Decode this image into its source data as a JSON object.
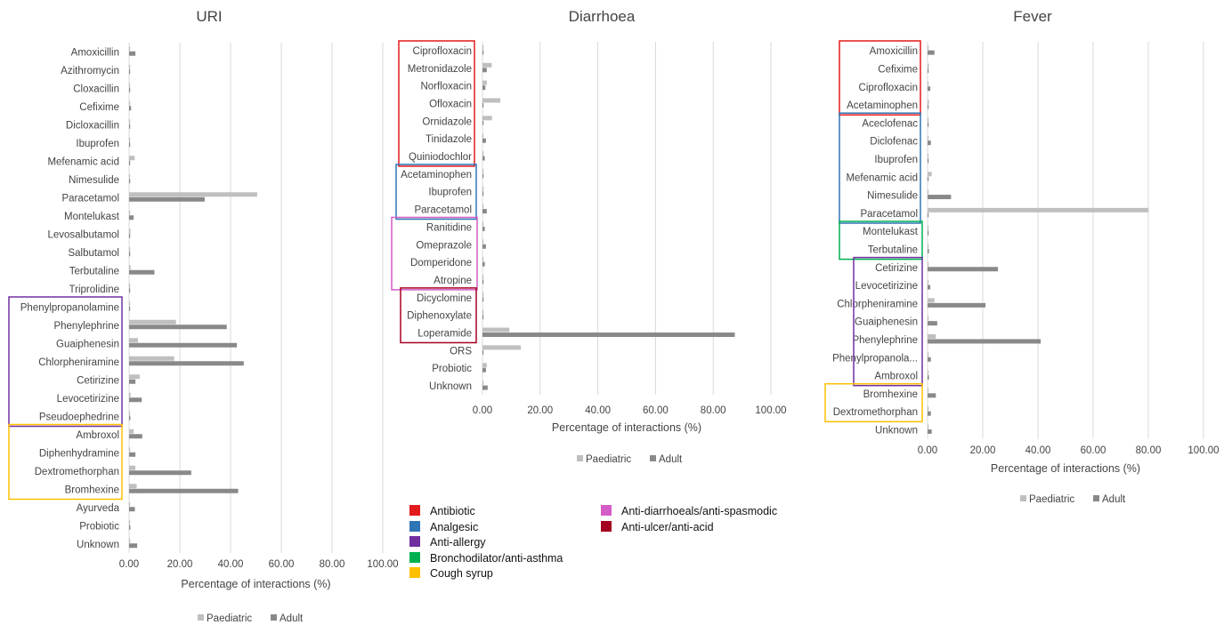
{
  "chart_data": [
    {
      "type": "bar",
      "orientation": "horizontal",
      "title": "URI",
      "xlabel": "Percentage of interactions (%)",
      "xlim": [
        0,
        100
      ],
      "xticks": [
        "0.00",
        "20.00",
        "40.00",
        "60.00",
        "80.00",
        "100.00"
      ],
      "grid": true,
      "legend_position": "bottom",
      "categories": [
        "Amoxicillin",
        "Azithromycin",
        "Cloxacillin",
        "Cefixime",
        "Dicloxacillin",
        "Ibuprofen",
        "Mefenamic acid",
        "Nimesulide",
        "Paracetamol",
        "Montelukast",
        "Levosalbutamol",
        "Salbutamol",
        "Terbutaline",
        "Triprolidine",
        "Phenylpropanolamine",
        "Phenylephrine",
        "Guaiphenesin",
        "Chlorpheniramine",
        "Cetirizine",
        "Levocetirizine",
        "Pseudoephedrine",
        "Ambroxol",
        "Diphenhydramine",
        "Dextromethorphan",
        "Bromhexine",
        "Ayurveda",
        "Probiotic",
        "Unknown"
      ],
      "series": [
        {
          "name": "Paediatric",
          "color": "#bfbfbf",
          "values": [
            0.2,
            0.2,
            0.2,
            0.2,
            0.2,
            0.3,
            2.2,
            0.2,
            50.5,
            0.2,
            0.6,
            0.2,
            0.6,
            0.2,
            0.2,
            18.5,
            3.5,
            17.8,
            4.2,
            0.6,
            0.2,
            1.8,
            0.2,
            2.5,
            3.0,
            0.2,
            0.2,
            0.2
          ]
        },
        {
          "name": "Adult",
          "color": "#898989",
          "values": [
            2.5,
            0.2,
            0.2,
            0.8,
            0.2,
            0.2,
            0.2,
            0.2,
            29.8,
            1.8,
            0.2,
            0.2,
            10.0,
            0.2,
            0.2,
            38.5,
            42.5,
            45.2,
            2.5,
            5.0,
            0.5,
            5.2,
            2.5,
            24.5,
            43.0,
            2.3,
            0.5,
            3.2
          ]
        }
      ],
      "groups": [
        {
          "class": "Anti-allergy",
          "from": "Phenylpropanolamine",
          "to": "Pseudoephedrine",
          "color": "#7030a0"
        },
        {
          "class": "Cough syrup",
          "from": "Ambroxol",
          "to": "Bromhexine",
          "color": "#ffc000"
        }
      ]
    },
    {
      "type": "bar",
      "orientation": "horizontal",
      "title": "Diarrhoea",
      "xlabel": "Percentage of interactions (%)",
      "xlim": [
        0,
        100
      ],
      "xticks": [
        "0.00",
        "20.00",
        "40.00",
        "60.00",
        "80.00",
        "100.00"
      ],
      "grid": true,
      "legend_position": "bottom",
      "categories": [
        "Ciprofloxacin",
        "Metronidazole",
        "Norfloxacin",
        "Ofloxacin",
        "Ornidazole",
        "Tinidazole",
        "Quiniodochlor",
        "Acetaminophen",
        "Ibuprofen",
        "Paracetamol",
        "Ranitidine",
        "Omeprazole",
        "Domperidone",
        "Atropine",
        "Dicyclomine",
        "Diphenoxylate",
        "Loperamide",
        "ORS",
        "Probiotic",
        "Unknown"
      ],
      "series": [
        {
          "name": "Paediatric",
          "color": "#bfbfbf",
          "values": [
            0.3,
            3.2,
            1.5,
            6.2,
            3.3,
            0.2,
            0.2,
            0.2,
            0.2,
            0.2,
            0.2,
            0.2,
            0.2,
            0.2,
            0.2,
            0.2,
            9.3,
            13.3,
            1.5,
            0.2
          ]
        },
        {
          "name": "Adult",
          "color": "#898989",
          "values": [
            0.2,
            1.5,
            1.0,
            0.2,
            0.2,
            1.2,
            0.8,
            0.2,
            0.2,
            1.5,
            0.8,
            1.2,
            0.8,
            0.3,
            0.3,
            0.2,
            87.5,
            0.2,
            1.2,
            1.8
          ]
        }
      ],
      "groups": [
        {
          "class": "Antibiotic",
          "from": "Ciprofloxacin",
          "to": "Quiniodochlor",
          "color": "#e31a1c"
        },
        {
          "class": "Analgesic",
          "from": "Acetaminophen",
          "to": "Paracetamol",
          "color": "#2e75b6"
        },
        {
          "class": "Anti-diarrhoeals/anti-spasmodic",
          "from": "Ranitidine",
          "to": "Atropine",
          "color": "#d45cc6"
        },
        {
          "class": "Anti-ulcer/anti-acid",
          "from": "Dicyclomine",
          "to": "Loperamide",
          "color": "#a50021"
        }
      ]
    },
    {
      "type": "bar",
      "orientation": "horizontal",
      "title": "Fever",
      "xlabel": "Percentage of interactions (%)",
      "xlim": [
        0,
        100
      ],
      "xticks": [
        "0.00",
        "20.00",
        "40.00",
        "60.00",
        "80.00",
        "100.00"
      ],
      "grid": true,
      "legend_position": "bottom",
      "categories": [
        "Amoxicillin",
        "Cefixime",
        "Ciprofloxacin",
        "Acetaminophen",
        "Aceclofenac",
        "Diclofenac",
        "Ibuprofen",
        "Mefenamic acid",
        "Nimesulide",
        "Paracetamol",
        "Montelukast",
        "Terbutaline",
        "Cetirizine",
        "Levocetirizine",
        "Chlorpheniramine",
        "Guaiphenesin",
        "Phenylephrine",
        "Phenylpropanola...",
        "Ambroxol",
        "Bromhexine",
        "Dextromethorphan",
        "Unknown"
      ],
      "series": [
        {
          "name": "Paediatric",
          "color": "#bfbfbf",
          "values": [
            0.2,
            0.5,
            0.2,
            0.5,
            0.2,
            0.2,
            0.2,
            1.5,
            0.2,
            80.0,
            0.2,
            0.2,
            0.2,
            0.2,
            2.5,
            0.2,
            3.0,
            0.2,
            0.2,
            0.2,
            0.2,
            0.2
          ]
        },
        {
          "name": "Adult",
          "color": "#898989",
          "values": [
            2.5,
            0.2,
            1.0,
            0.2,
            0.2,
            1.2,
            0.2,
            0.2,
            8.5,
            0.2,
            0.2,
            0.5,
            25.5,
            1.0,
            21.0,
            3.5,
            41.0,
            1.2,
            0.5,
            3.0,
            1.2,
            1.5
          ]
        }
      ],
      "groups": [
        {
          "class": "Antibiotic",
          "from": "Amoxicillin",
          "to": "Acetaminophen",
          "color": "#e31a1c"
        },
        {
          "class": "Analgesic",
          "from": "Aceclofenac",
          "to": "Paracetamol",
          "color": "#2e75b6"
        },
        {
          "class": "Bronchodilator/anti-asthma",
          "from": "Montelukast",
          "to": "Terbutaline",
          "color": "#00b050"
        },
        {
          "class": "Anti-allergy",
          "from": "Cetirizine",
          "to": "Ambroxol",
          "color": "#7030a0"
        },
        {
          "class": "Cough syrup",
          "from": "Bromhexine",
          "to": "Dextromethorphan",
          "color": "#ffc000"
        }
      ]
    }
  ],
  "class_key": [
    {
      "label": "Antibiotic",
      "color": "#e31a1c"
    },
    {
      "label": "Analgesic",
      "color": "#2e75b6"
    },
    {
      "label": "Anti-allergy",
      "color": "#7030a0"
    },
    {
      "label": "Bronchodilator/anti-asthma",
      "color": "#00b050"
    },
    {
      "label": "Cough syrup",
      "color": "#ffc000"
    },
    {
      "label": "Anti-diarrhoeals/anti-spasmodic",
      "color": "#d45cc6"
    },
    {
      "label": "Anti-ulcer/anti-acid",
      "color": "#a50021"
    }
  ]
}
